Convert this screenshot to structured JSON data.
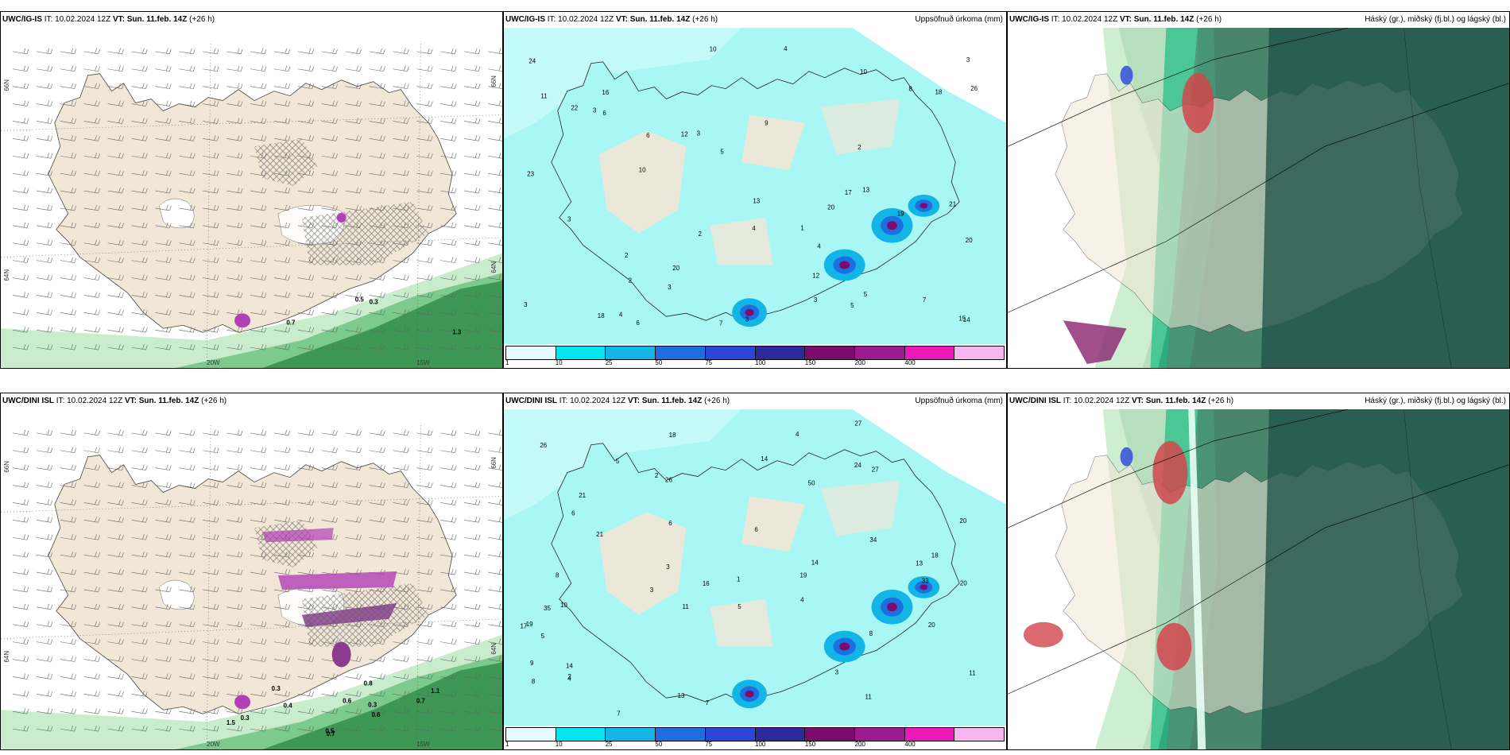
{
  "rows": [
    {
      "model": "UWC/IG-IS",
      "it_label": "IT:",
      "it_value": "10.02.2024 12Z",
      "vt_label": "VT:",
      "vt_value": "Sun. 11.feb. 14Z",
      "lead": "(+26 h)",
      "lon_labels": [
        "20W",
        "15W"
      ],
      "lat_labels": [
        "66N",
        "64N",
        "66N",
        "64N"
      ],
      "precip_values": [
        "4",
        "2",
        "6",
        "5",
        "3",
        "2",
        "4",
        "3",
        "5",
        "3",
        "3",
        "12",
        "12",
        "10",
        "13",
        "9",
        "4",
        "3",
        "23",
        "18",
        "21",
        "16",
        "18",
        "20",
        "20",
        "24",
        "20",
        "19",
        "14",
        "22",
        "15",
        "26",
        "13",
        "11",
        "10",
        "7",
        "4",
        "3",
        "2",
        "1",
        "3",
        "10",
        "17",
        "5",
        "8",
        "3",
        "2",
        "6",
        "6",
        "7"
      ],
      "wind_values": [
        "0.3",
        "0.7",
        "0.5",
        "1.3"
      ]
    },
    {
      "model": "UWC/DINI ISL",
      "it_label": "IT:",
      "it_value": "10.02.2024 12Z",
      "vt_label": "VT:",
      "vt_value": "Sun. 11.feb. 14Z",
      "lead": "(+26 h)",
      "lon_labels": [
        "20W",
        "15W"
      ],
      "lat_labels": [
        "66N",
        "64N",
        "66N",
        "64N"
      ],
      "precip_values": [
        "5",
        "4",
        "3",
        "2",
        "1",
        "11",
        "34",
        "6",
        "4",
        "8",
        "6",
        "5",
        "14",
        "13",
        "20",
        "27",
        "21",
        "10",
        "11",
        "18",
        "19",
        "20",
        "21",
        "26",
        "19",
        "20",
        "14",
        "18",
        "35",
        "27",
        "9",
        "13",
        "8",
        "7",
        "50",
        "33",
        "26",
        "24",
        "16",
        "2",
        "5",
        "8",
        "6",
        "7",
        "4",
        "3",
        "3",
        "11",
        "14",
        "17"
      ],
      "wind_values": [
        "0.7",
        "0.6",
        "0.6",
        "0.7",
        "0.5",
        "1.1",
        "0.3",
        "0.8",
        "1.5",
        "0.3",
        "0.4",
        "0.3"
      ]
    }
  ],
  "precip_title": "Uppsöfnuð úrkoma (mm)",
  "cloud_title": "Háský (gr.), miðský (fj.bl.) og lágský (bl.)",
  "legend": {
    "labels": [
      "1",
      "10",
      "25",
      "50",
      "75",
      "100",
      "150",
      "200",
      "400"
    ],
    "colors": [
      "#e6fbfb",
      "#00e5ef",
      "#12b5e6",
      "#1d6fe0",
      "#2f45d8",
      "#2b2a9a",
      "#7b0b6e",
      "#9c1c8f",
      "#ec19b6",
      "#f4b7f0"
    ]
  },
  "colors": {
    "land": "#f2e6d6",
    "snow_light": "#c8eccc",
    "snow_mid": "#7ccb8c",
    "snow_dark": "#2f8a48",
    "precip_bg": "#a9f7f4",
    "cloud_dark": "#2c5e52",
    "cloud_mid": "#4f8f74",
    "red": "#d1454b",
    "blue": "#3c57d6",
    "magenta": "#b23fb5"
  }
}
